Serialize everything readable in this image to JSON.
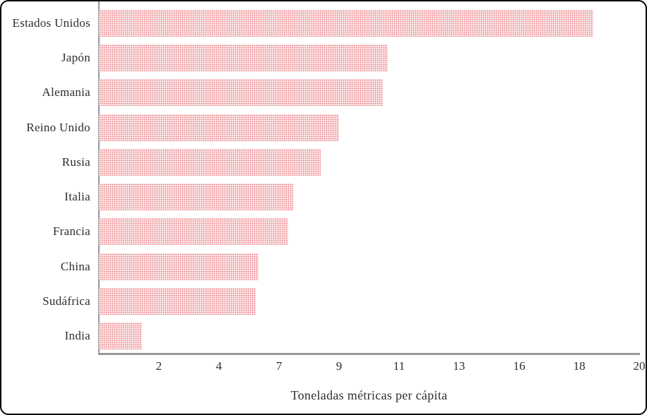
{
  "chart_data": {
    "type": "bar",
    "orientation": "horizontal",
    "title": "",
    "xlabel": "Toneladas métricas per cápita",
    "ylabel": "",
    "xlim": [
      0,
      20
    ],
    "grid": false,
    "legend": false,
    "categories": [
      "Estados Unidos",
      "Japón",
      "Alemania",
      "Reino Unido",
      "Rusia",
      "Italia",
      "Francia",
      "China",
      "Sudáfrica",
      "India"
    ],
    "values": [
      18.3,
      10.7,
      10.5,
      8.9,
      8.2,
      7.2,
      7.0,
      5.9,
      5.8,
      1.6
    ],
    "x_ticks": [
      {
        "label": "2",
        "value": 2.22
      },
      {
        "label": "4",
        "value": 4.44
      },
      {
        "label": "7",
        "value": 6.67
      },
      {
        "label": "9",
        "value": 8.89
      },
      {
        "label": "11",
        "value": 11.11
      },
      {
        "label": "13",
        "value": 13.33
      },
      {
        "label": "16",
        "value": 15.56
      },
      {
        "label": "18",
        "value": 17.78
      },
      {
        "label": "20",
        "value": 20
      }
    ],
    "colors": {
      "bar_fill_base": "#fdecec",
      "bar_fill_dot": "#ea8a8f",
      "axis": "#96969e",
      "text": "#2e2e2e",
      "frame_border": "#000000",
      "background": "#ffffff"
    }
  }
}
